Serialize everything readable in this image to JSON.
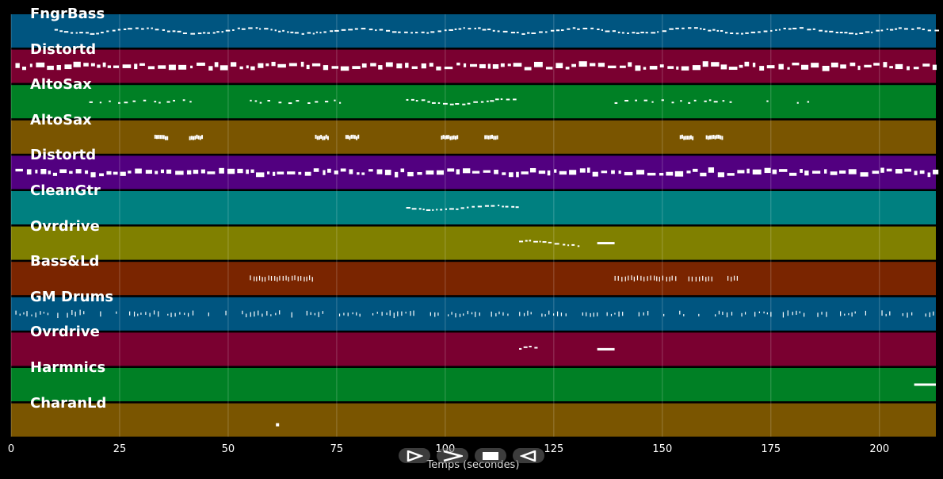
{
  "tracks": [
    {
      "name": "FngrBass",
      "color": "#005580"
    },
    {
      "name": "Distortd",
      "color": "#7a0030"
    },
    {
      "name": "AltoSax",
      "color": "#008025"
    },
    {
      "name": "AltoSax",
      "color": "#7a5500"
    },
    {
      "name": "Distortd",
      "color": "#520080"
    },
    {
      "name": "CleanGtr",
      "color": "#008080"
    },
    {
      "name": "Ovrdrive",
      "color": "#808000"
    },
    {
      "name": "Bass&Ld",
      "color": "#7a2500"
    },
    {
      "name": "GM Drums",
      "color": "#005580"
    },
    {
      "name": "Ovrdrive",
      "color": "#7a0030"
    },
    {
      "name": "Harmnics",
      "color": "#008025"
    },
    {
      "name": "CharanLd",
      "color": "#7a5500"
    }
  ],
  "axis": {
    "label": "Temps (secondes)",
    "ticks": [
      "0",
      "25",
      "50",
      "75",
      "100",
      "125",
      "150",
      "175",
      "200"
    ],
    "tick_values": [
      0,
      25,
      50,
      75,
      100,
      125,
      150,
      175,
      200
    ],
    "range": [
      0,
      213
    ]
  },
  "controls": [
    {
      "name": "play-from-start-button",
      "icon": "play-outline-icon"
    },
    {
      "name": "play-button",
      "icon": "play-icon"
    },
    {
      "name": "stop-button",
      "icon": "stop-icon"
    },
    {
      "name": "rewind-button",
      "icon": "rewind-icon"
    }
  ],
  "note_segments": [
    [
      [
        10,
        213,
        "mel"
      ]
    ],
    [
      [
        1,
        213,
        "dense"
      ]
    ],
    [
      [
        18,
        43,
        "sparse"
      ],
      [
        55,
        76,
        "sparse"
      ],
      [
        91,
        117,
        "mel"
      ],
      [
        139,
        167,
        "sparse"
      ],
      [
        174,
        176,
        "sparse"
      ],
      [
        181,
        184,
        "sparse"
      ]
    ],
    [
      [
        33,
        36,
        "block"
      ],
      [
        41,
        44,
        "block"
      ],
      [
        70,
        73,
        "block"
      ],
      [
        77,
        80,
        "block"
      ],
      [
        99,
        103,
        "block"
      ],
      [
        109,
        112,
        "block"
      ],
      [
        154,
        157,
        "block"
      ],
      [
        160,
        164,
        "block"
      ]
    ],
    [
      [
        1,
        213,
        "dense"
      ]
    ],
    [
      [
        91,
        117,
        "mel"
      ]
    ],
    [
      [
        117,
        131,
        "mel"
      ],
      [
        135,
        139,
        "line"
      ]
    ],
    [
      [
        55,
        70,
        "ticks"
      ],
      [
        139,
        153,
        "ticks"
      ],
      [
        156,
        162,
        "ticks"
      ],
      [
        165,
        168,
        "ticks"
      ]
    ],
    [
      [
        1,
        213,
        "drums"
      ]
    ],
    [
      [
        117,
        121,
        "mel"
      ],
      [
        135,
        139,
        "line"
      ]
    ],
    [
      [
        208,
        213,
        "line"
      ]
    ],
    [
      [
        61,
        62,
        "dot"
      ]
    ]
  ]
}
